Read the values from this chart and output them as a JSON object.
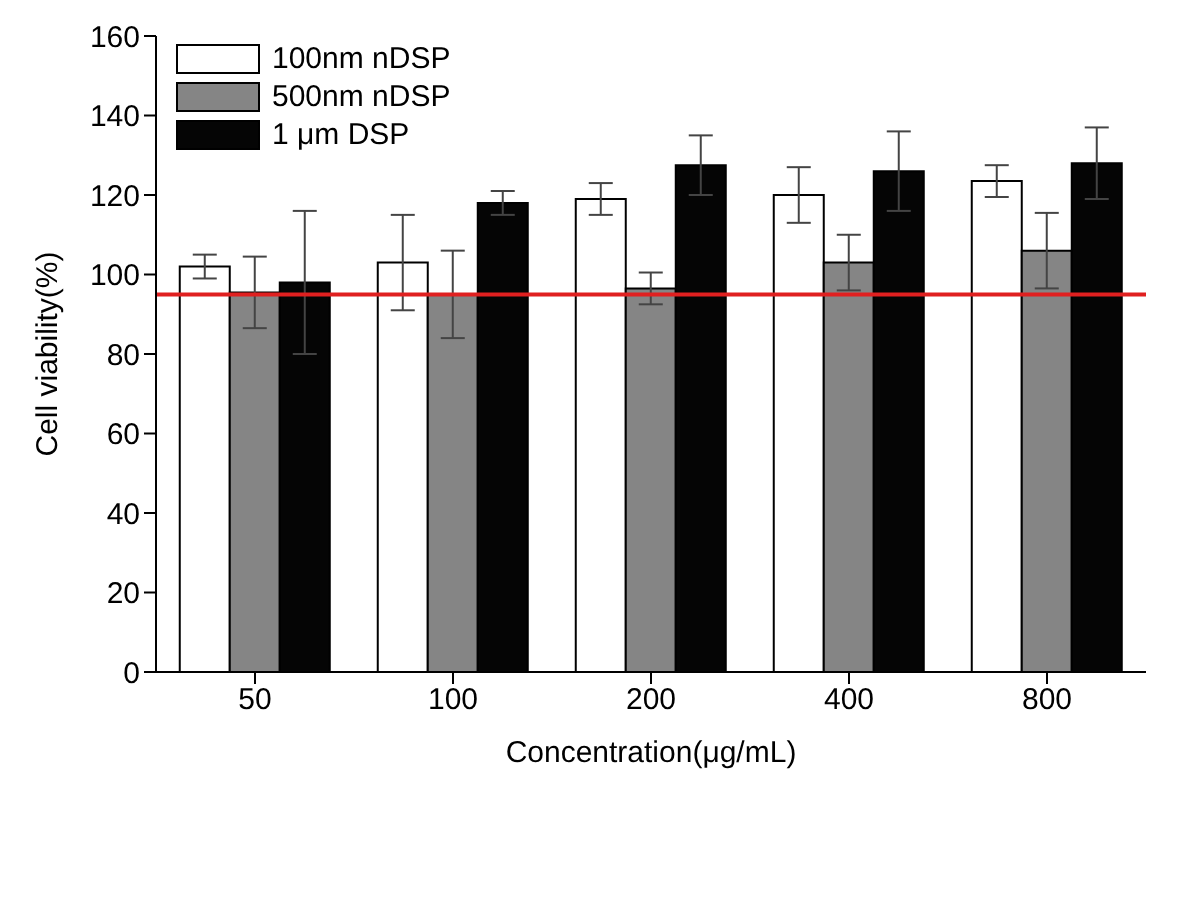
{
  "chart_data": {
    "type": "bar",
    "xlabel": "Concentration(μg/mL)",
    "ylabel": "Cell viability(%)",
    "categories": [
      "50",
      "100",
      "200",
      "400",
      "800"
    ],
    "series": [
      {
        "name": "100nm nDSP",
        "color": "#ffffff",
        "values": [
          102,
          103,
          119,
          120,
          123.5
        ],
        "errors": [
          3,
          12,
          4,
          7,
          4
        ]
      },
      {
        "name": "500nm nDSP",
        "color": "#858585",
        "values": [
          95.5,
          95,
          96.5,
          103,
          106
        ],
        "errors": [
          9,
          11,
          4,
          7,
          9.5
        ]
      },
      {
        "name": "1 μm DSP",
        "color": "#050505",
        "values": [
          98,
          118,
          127.5,
          126,
          128
        ],
        "errors": [
          18,
          3,
          7.5,
          10,
          9
        ]
      }
    ],
    "ylim": [
      0,
      160
    ],
    "yticks": [
      0,
      20,
      40,
      60,
      80,
      100,
      120,
      140,
      160
    ],
    "ref_lines": [
      {
        "axis": "y",
        "value": 95,
        "color": "#e02020"
      }
    ],
    "legend": "top left"
  }
}
